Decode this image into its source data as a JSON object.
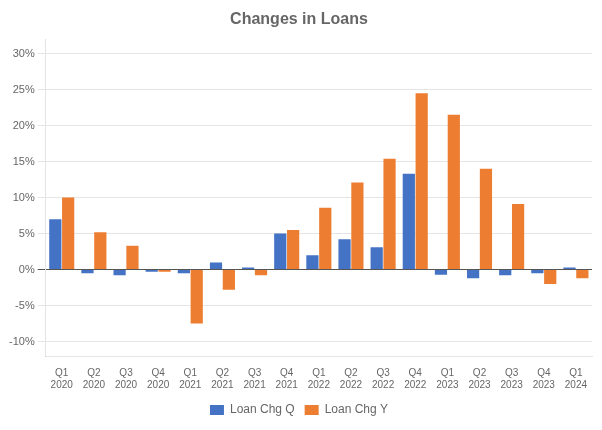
{
  "chart_data": {
    "type": "bar",
    "title": "Changes in Loans",
    "categories": [
      "Q1\n2020",
      "Q2\n2020",
      "Q3\n2020",
      "Q4\n2020",
      "Q1\n2021",
      "Q2\n2021",
      "Q3\n2021",
      "Q4\n2021",
      "Q1\n2022",
      "Q2\n2022",
      "Q3\n2022",
      "Q4\n2022",
      "Q1\n2023",
      "Q2\n2023",
      "Q3\n2023",
      "Q4\n2023",
      "Q1\n2024"
    ],
    "series": [
      {
        "name": "Loan Chg Q",
        "color": "#4472c4",
        "values": [
          0.07,
          -0.005,
          -0.008,
          -0.003,
          -0.005,
          0.01,
          0.003,
          0.05,
          0.02,
          0.042,
          0.031,
          0.133,
          -0.007,
          -0.012,
          -0.008,
          -0.005,
          0.003
        ]
      },
      {
        "name": "Loan Chg Y",
        "color": "#ed7d31",
        "values": [
          0.1,
          0.052,
          0.033,
          -0.003,
          -0.075,
          -0.028,
          -0.008,
          0.055,
          0.086,
          0.121,
          0.154,
          0.245,
          0.215,
          0.14,
          0.091,
          -0.02,
          -0.012
        ]
      }
    ],
    "ylim": [
      -0.12,
      0.32
    ],
    "yticks": [
      {
        "value": -0.1,
        "label": "-10%"
      },
      {
        "value": -0.05,
        "label": "-5%"
      },
      {
        "value": 0.0,
        "label": "0%"
      },
      {
        "value": 0.05,
        "label": "5%"
      },
      {
        "value": 0.1,
        "label": "10%"
      },
      {
        "value": 0.15,
        "label": "15%"
      },
      {
        "value": 0.2,
        "label": "20%"
      },
      {
        "value": 0.25,
        "label": "25%"
      },
      {
        "value": 0.3,
        "label": "30%"
      }
    ],
    "grid": true,
    "legend": "bottom"
  }
}
